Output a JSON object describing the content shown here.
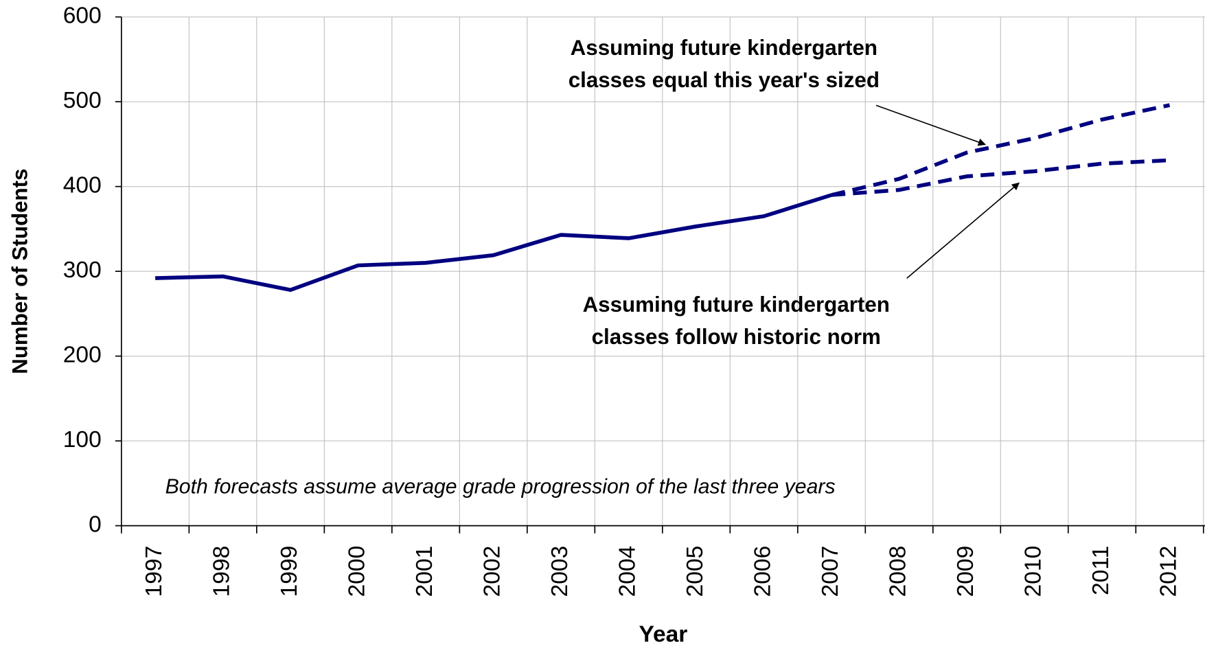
{
  "chart_data": {
    "type": "line",
    "x_label": "Year",
    "y_label": "Number of Students",
    "categories": [
      "1997",
      "1998",
      "1999",
      "2000",
      "2001",
      "2002",
      "2003",
      "2004",
      "2005",
      "2006",
      "2007",
      "2008",
      "2009",
      "2010",
      "2011",
      "2012"
    ],
    "series": [
      {
        "color": "#000080",
        "style": "solid",
        "values": [
          292,
          294,
          278,
          307,
          310,
          319,
          343,
          339,
          353,
          365,
          390,
          null,
          null,
          null,
          null,
          null
        ]
      },
      {
        "color": "#000080",
        "style": "dashed",
        "values": [
          null,
          null,
          null,
          null,
          null,
          null,
          null,
          null,
          null,
          null,
          390,
          409,
          440,
          457,
          479,
          496
        ]
      },
      {
        "color": "#000080",
        "style": "dashed",
        "values": [
          null,
          null,
          null,
          null,
          null,
          null,
          null,
          null,
          null,
          null,
          390,
          396,
          412,
          418,
          427,
          431
        ]
      }
    ],
    "ylim": [
      0,
      600
    ],
    "yticks": [
      0,
      100,
      200,
      300,
      400,
      500,
      600
    ],
    "grid": true,
    "annotations": [
      {
        "lines": [
          "Assuming future kindergarten",
          "classes equal this year's sized"
        ]
      },
      {
        "lines": [
          "Assuming future kindergarten",
          "classes follow historic norm"
        ]
      },
      {
        "lines": [
          "Both forecasts assume average grade progression of the last three years"
        ]
      }
    ]
  }
}
